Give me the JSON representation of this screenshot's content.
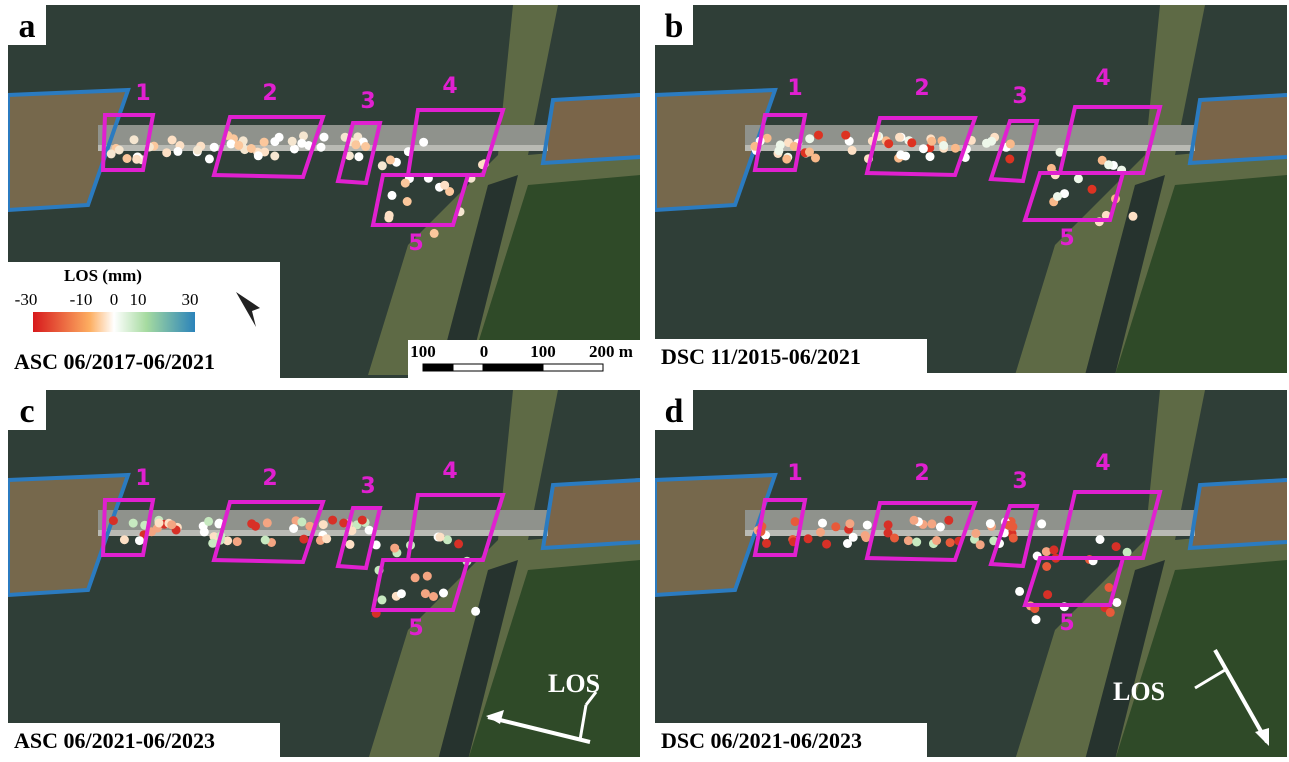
{
  "panels": [
    {
      "letter": "a",
      "caption": "ASC 06/2017-06/2021",
      "regions": [
        "1",
        "2",
        "3",
        "4",
        "5"
      ]
    },
    {
      "letter": "b",
      "caption": "DSC 11/2015-06/2021",
      "regions": [
        "1",
        "2",
        "3",
        "4",
        "5"
      ]
    },
    {
      "letter": "c",
      "caption": "ASC 06/2021-06/2023",
      "regions": [
        "1",
        "2",
        "3",
        "4",
        "5"
      ],
      "los_label": "LOS"
    },
    {
      "letter": "d",
      "caption": "DSC 06/2021-06/2023",
      "regions": [
        "1",
        "2",
        "3",
        "4",
        "5"
      ],
      "los_label": "LOS"
    }
  ],
  "colorbar": {
    "title": "LOS (mm)",
    "ticks": [
      "-30",
      "-10",
      "0",
      "10",
      "30"
    ]
  },
  "scale_bar": {
    "labels": [
      "100",
      "0",
      "100",
      "200 m"
    ]
  }
}
